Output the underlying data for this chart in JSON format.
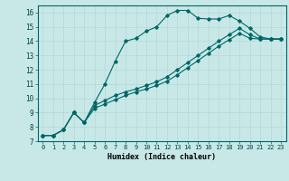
{
  "title": "",
  "xlabel": "Humidex (Indice chaleur)",
  "ylabel": "",
  "bg_color": "#c8e8e8",
  "line_color": "#006666",
  "xlim": [
    -0.5,
    23.5
  ],
  "ylim": [
    7.0,
    16.5
  ],
  "xticks": [
    0,
    1,
    2,
    3,
    4,
    5,
    6,
    7,
    8,
    9,
    10,
    11,
    12,
    13,
    14,
    15,
    16,
    17,
    18,
    19,
    20,
    21,
    22,
    23
  ],
  "yticks": [
    7,
    8,
    9,
    10,
    11,
    12,
    13,
    14,
    15,
    16
  ],
  "line1_x": [
    0,
    1,
    2,
    3,
    4,
    5,
    6,
    7,
    8,
    9,
    10,
    11,
    12,
    13,
    14,
    15,
    16,
    17,
    18,
    19,
    20,
    21,
    22,
    23
  ],
  "line1_y": [
    7.4,
    7.4,
    7.8,
    9.0,
    8.3,
    9.7,
    11.0,
    12.6,
    14.0,
    14.2,
    14.7,
    15.0,
    15.8,
    16.15,
    16.15,
    15.6,
    15.55,
    15.55,
    15.8,
    15.4,
    14.9,
    14.3,
    14.15,
    14.15
  ],
  "line2_x": [
    0,
    1,
    2,
    3,
    4,
    5,
    6,
    7,
    8,
    9,
    10,
    11,
    12,
    13,
    14,
    15,
    16,
    17,
    18,
    19,
    20,
    21,
    22,
    23
  ],
  "line2_y": [
    7.4,
    7.4,
    7.8,
    9.0,
    8.3,
    9.5,
    9.85,
    10.2,
    10.45,
    10.65,
    10.9,
    11.15,
    11.5,
    12.0,
    12.5,
    13.0,
    13.5,
    14.0,
    14.45,
    14.9,
    14.45,
    14.15,
    14.15,
    14.15
  ],
  "line3_x": [
    0,
    1,
    2,
    3,
    4,
    5,
    6,
    7,
    8,
    9,
    10,
    11,
    12,
    13,
    14,
    15,
    16,
    17,
    18,
    19,
    20,
    21,
    22,
    23
  ],
  "line3_y": [
    7.4,
    7.4,
    7.8,
    9.0,
    8.3,
    9.3,
    9.6,
    9.9,
    10.2,
    10.45,
    10.65,
    10.9,
    11.2,
    11.65,
    12.15,
    12.65,
    13.15,
    13.65,
    14.1,
    14.55,
    14.2,
    14.15,
    14.15,
    14.15
  ]
}
